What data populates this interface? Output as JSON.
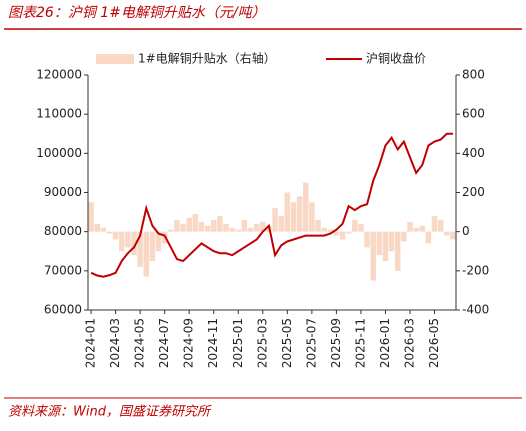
{
  "chart_data": {
    "type": "bar",
    "title": "图表26：沪铜 1#电解铜升贴水（元/吨）",
    "source": "资料来源：Wind，国盛证券研究所",
    "categories": [
      "2024-01",
      null,
      null,
      null,
      "2024-03",
      null,
      null,
      null,
      "2024-05",
      null,
      null,
      null,
      "2024-07",
      null,
      null,
      null,
      "2024-09",
      null,
      null,
      null,
      "2024-11",
      null,
      null,
      null,
      "2025-01",
      null,
      null,
      null,
      "2025-03",
      null,
      null,
      null,
      "2025-05",
      null,
      null,
      null,
      "2025-07",
      null,
      null,
      null,
      "2025-09",
      null,
      null,
      null,
      "2025-11",
      null,
      null,
      null,
      "2026-01",
      null,
      null,
      null,
      "2026-03",
      null,
      null,
      null,
      "2026-05",
      null,
      null,
      null
    ],
    "series": [
      {
        "name": "1#电解铜升贴水（右轴）",
        "color": "#f9d9c6",
        "type": "bar",
        "axis": "y2",
        "values": [
          150,
          40,
          20,
          -10,
          -40,
          -100,
          -80,
          -120,
          -180,
          -230,
          -150,
          -100,
          -60,
          10,
          60,
          40,
          70,
          90,
          50,
          30,
          60,
          80,
          40,
          20,
          10,
          60,
          20,
          40,
          50,
          30,
          120,
          80,
          200,
          150,
          180,
          250,
          150,
          60,
          20,
          10,
          -20,
          -40,
          -10,
          60,
          40,
          -80,
          -250,
          -120,
          -150,
          -100,
          -200,
          -50,
          50,
          20,
          30,
          -60,
          80,
          60,
          -20,
          -40
        ]
      },
      {
        "name": "沪铜收盘价",
        "color": "#c00000",
        "type": "line",
        "values": [
          69500,
          68800,
          68500,
          68900,
          69500,
          72500,
          74500,
          76000,
          79000,
          86000,
          81500,
          79500,
          79000,
          76000,
          73000,
          72500,
          74000,
          75500,
          77000,
          76000,
          75000,
          74500,
          74500,
          74000,
          75000,
          76000,
          77000,
          78000,
          80000,
          81500,
          74000,
          76500,
          77500,
          78000,
          78500,
          79000,
          79000,
          79000,
          79000,
          79500,
          80500,
          82000,
          86500,
          85500,
          86500,
          87000,
          93000,
          97000,
          102000,
          104000,
          101000,
          103000,
          99000,
          95000,
          97000,
          102000,
          103000,
          103500,
          105000,
          105000
        ]
      }
    ],
    "ylim": [
      60000,
      120000
    ],
    "yticks": [
      60000,
      70000,
      80000,
      90000,
      100000,
      110000,
      120000
    ],
    "y2lim": [
      -400,
      800
    ],
    "y2ticks": [
      -400,
      -200,
      0,
      200,
      400,
      600,
      800
    ]
  }
}
